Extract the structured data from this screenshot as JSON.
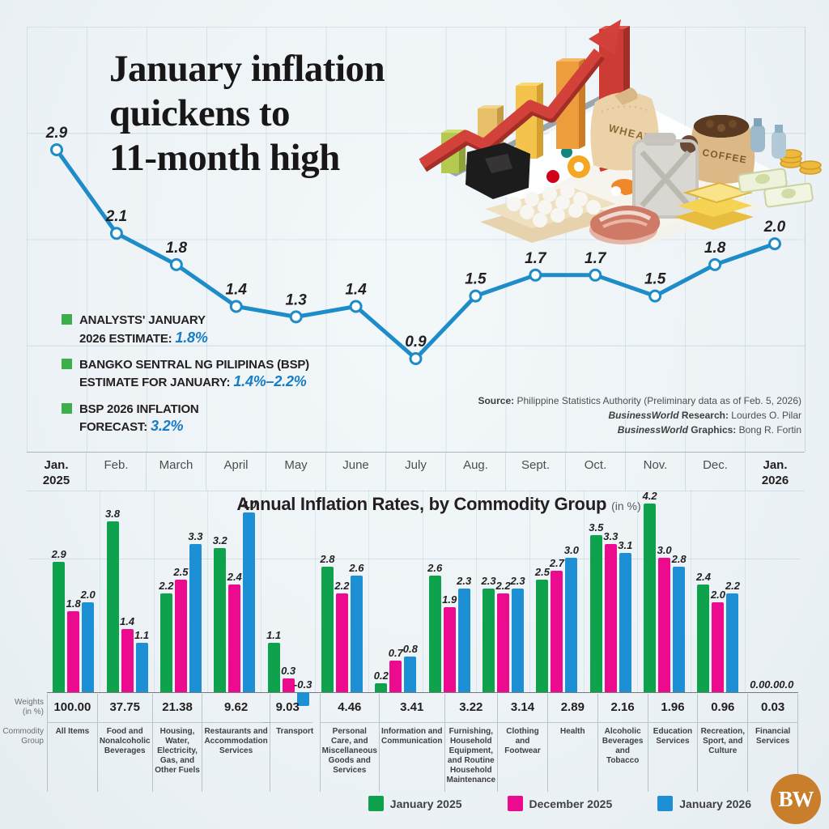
{
  "header": {
    "title_lines": [
      "January inflation",
      "quickens to",
      "11-month high"
    ]
  },
  "annotations": [
    {
      "lines": [
        "ANALYSTS' JANUARY",
        "2026 ESTIMATE: "
      ],
      "value": "1.8%"
    },
    {
      "lines": [
        "BANGKO SENTRAL NG PILIPINAS (BSP)",
        "ESTIMATE FOR JANUARY: "
      ],
      "value": "1.4%–2.2%"
    },
    {
      "lines": [
        "BSP 2026 INFLATION",
        "FORECAST: "
      ],
      "value": "3.2%"
    }
  ],
  "source_lines": [
    {
      "brand": "",
      "bold": "Source:",
      "text": " Philippine Statistics Authority (Preliminary data as of Feb. 5, 2026)"
    },
    {
      "brand": "BusinessWorld",
      "bold": " Research:",
      "text": " Lourdes O. Pilar"
    },
    {
      "brand": "BusinessWorld",
      "bold": " Graphics:",
      "text": " Bong R. Fortin"
    }
  ],
  "colors": {
    "line": "#1f8cca",
    "jan2025": "#0fa24c",
    "dec2025": "#ec0b8f",
    "jan2026": "#1d8fd4",
    "bullet_green": "#3cae4a",
    "value_blue": "#177dc4",
    "logo_circle": "#c97e2c"
  },
  "logo": {
    "text": "BW"
  },
  "chart_data": [
    {
      "type": "line",
      "x": [
        "Jan. 2025",
        "Feb.",
        "March",
        "April",
        "May",
        "June",
        "July",
        "Aug.",
        "Sept.",
        "Oct.",
        "Nov.",
        "Dec.",
        "Jan. 2026"
      ],
      "values": [
        2.9,
        2.1,
        1.8,
        1.4,
        1.3,
        1.4,
        0.9,
        1.5,
        1.7,
        1.7,
        1.5,
        1.8,
        2.0
      ],
      "data_labels": true,
      "line_color": "#1f8cca",
      "marker": "white-circle-blue-ring",
      "grid": true,
      "legend_position": "none"
    },
    {
      "type": "bar",
      "title": "Annual Inflation Rates, by Commodity Group",
      "title_suffix": "(in %)",
      "row_headers": {
        "weights": [
          "Weights",
          "(in %)"
        ],
        "group": [
          "Commodity",
          "Group"
        ]
      },
      "categories": [
        "All Items",
        "Food and Nonalcoholic Beverages",
        "Housing, Water, Electricity, Gas, and Other Fuels",
        "Restaurants and Accommodation Services",
        "Transport",
        "Personal Care, and Miscellaneous Goods and Services",
        "Information and Communication",
        "Furnishing, Household Equipment, and Routine Household Maintenance",
        "Clothing and Footwear",
        "Health",
        "Alcoholic Beverages and Tobacco",
        "Education Services",
        "Recreation, Sport, and Culture",
        "Financial Services"
      ],
      "weights": [
        "100.00",
        "37.75",
        "21.38",
        "9.62",
        "9.03",
        "4.46",
        "3.41",
        "3.22",
        "3.14",
        "2.89",
        "2.16",
        "1.96",
        "0.96",
        "0.03"
      ],
      "series": [
        {
          "name": "January 2025",
          "color": "#0fa24c",
          "values": [
            2.9,
            3.8,
            2.2,
            3.2,
            1.1,
            2.8,
            0.2,
            2.6,
            2.3,
            2.5,
            3.5,
            4.2,
            2.4,
            0.0
          ]
        },
        {
          "name": "December 2025",
          "color": "#ec0b8f",
          "values": [
            1.8,
            1.4,
            2.5,
            2.4,
            0.3,
            2.2,
            0.7,
            1.9,
            2.2,
            2.7,
            3.3,
            3.0,
            2.0,
            0.0
          ]
        },
        {
          "name": "January 2026",
          "color": "#1d8fd4",
          "values": [
            2.0,
            1.1,
            3.3,
            4.0,
            -0.3,
            2.6,
            0.8,
            2.3,
            2.3,
            3.0,
            3.1,
            2.8,
            2.2,
            0.0
          ]
        }
      ],
      "ylim": [
        -0.5,
        4.5
      ],
      "grid": false,
      "legend_position": "bottom-right"
    }
  ]
}
